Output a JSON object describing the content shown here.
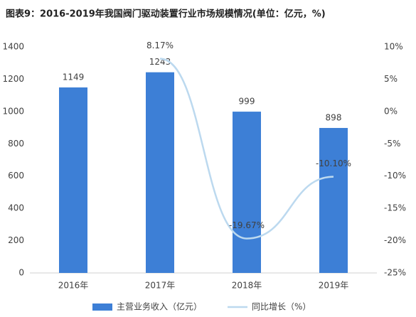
{
  "chart_data": {
    "type": "bar-line",
    "title": "图表9：2016-2019年我国阀门驱动装置行业市场规模情况(单位：亿元，%)",
    "categories": [
      "2016年",
      "2017年",
      "2018年",
      "2019年"
    ],
    "series": [
      {
        "name": "主营业务收入（亿元）",
        "type": "bar",
        "color": "#3d7fd6",
        "values": [
          1149,
          1243,
          999,
          898
        ]
      },
      {
        "name": "同比增长（%）",
        "type": "line",
        "axis": "y2",
        "color": "#bcd9ef",
        "values": [
          null,
          8.17,
          -19.67,
          -10.1
        ],
        "value_labels": [
          null,
          "8.17%",
          "-19.67%",
          "-10.10%"
        ]
      }
    ],
    "ylim": [
      0,
      1400
    ],
    "yticks": [
      0,
      200,
      400,
      600,
      800,
      1000,
      1200,
      1400
    ],
    "y2lim": [
      -25,
      10
    ],
    "y2ticks": [
      {
        "value": -25,
        "label": "-25%"
      },
      {
        "value": -20,
        "label": "-20%"
      },
      {
        "value": -15,
        "label": "-15%"
      },
      {
        "value": -10,
        "label": "-10%"
      },
      {
        "value": -5,
        "label": "-5%"
      },
      {
        "value": 0,
        "label": "0%"
      },
      {
        "value": 5,
        "label": "5%"
      },
      {
        "value": 10,
        "label": "10%"
      }
    ],
    "legend": "bottom"
  }
}
